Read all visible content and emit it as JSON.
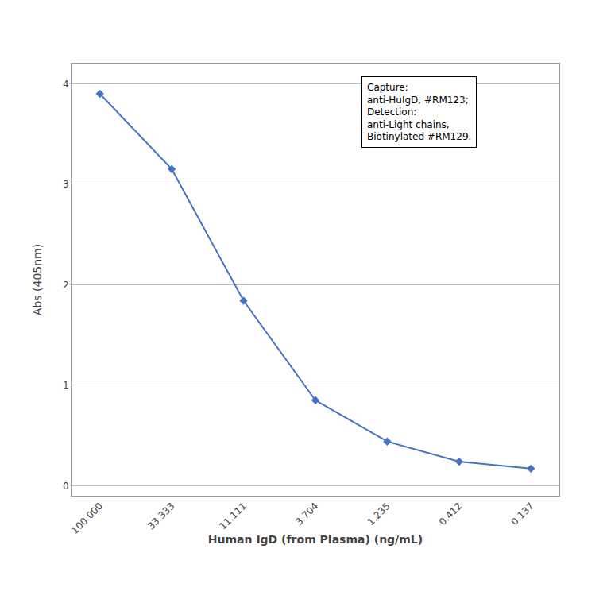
{
  "chart_data": {
    "type": "line",
    "xlabel": "Human IgD (from Plasma) (ng/mL)",
    "ylabel": "Abs (405nm)",
    "categories": [
      "100.000",
      "33.333",
      "11.111",
      "3.704",
      "1.235",
      "0.412",
      "0.137"
    ],
    "values": [
      3.9,
      3.15,
      1.84,
      0.85,
      0.44,
      0.24,
      0.17
    ],
    "color": "#4472C4",
    "marker": "diamond",
    "ylim": [
      -0.1,
      4.2
    ],
    "yticks": [
      0,
      1,
      2,
      3,
      4
    ],
    "grid": true,
    "annotation": [
      "Capture:",
      "anti-HuIgD, #RM123;",
      "Detection:",
      "anti-Light chains,",
      "Biotinylated #RM129."
    ]
  }
}
